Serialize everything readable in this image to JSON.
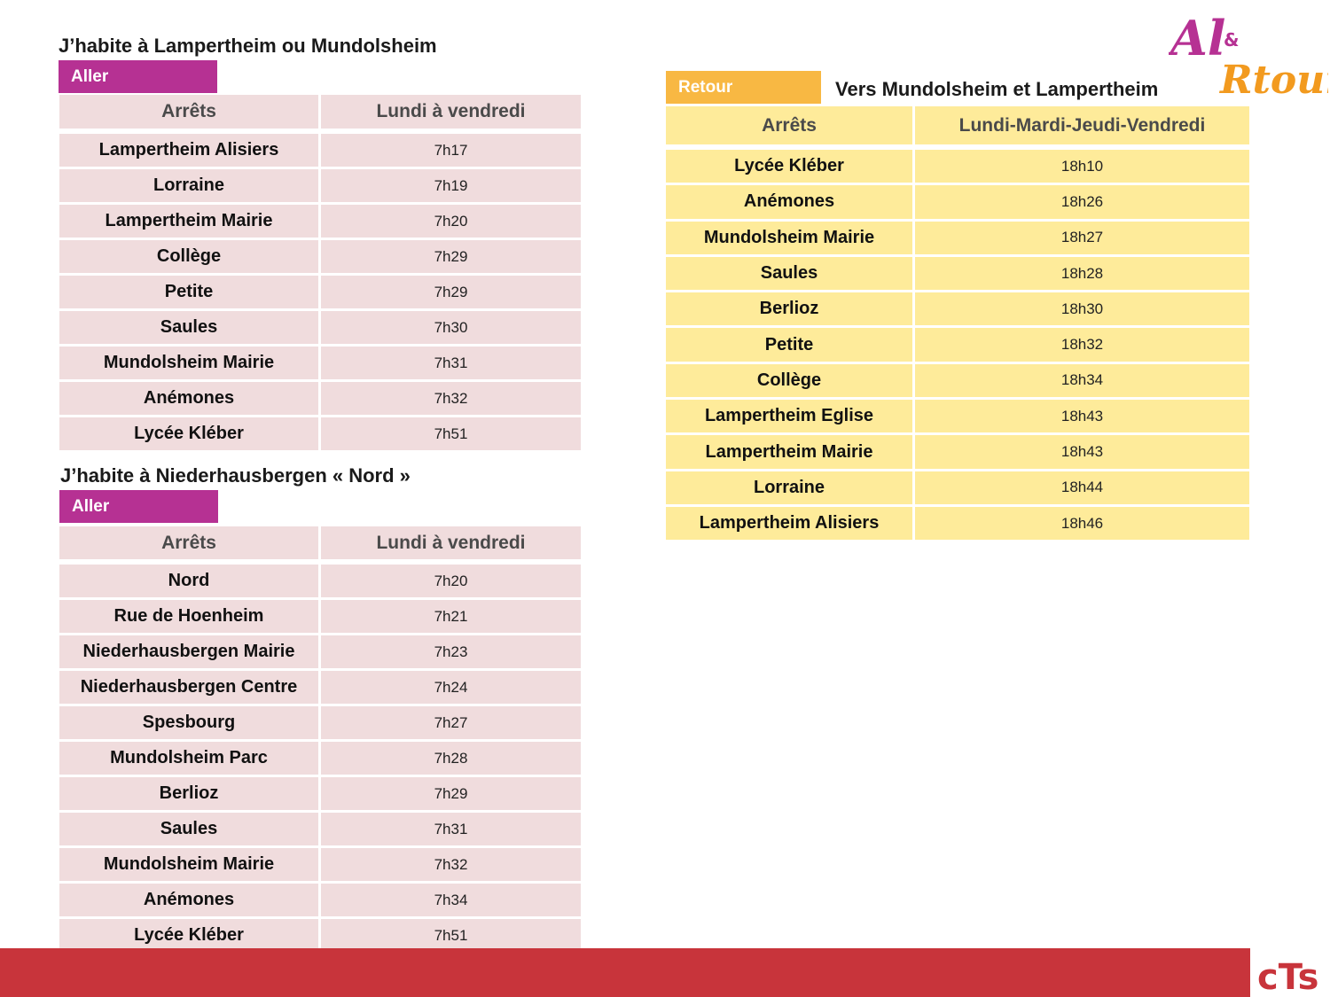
{
  "section1": {
    "heading": "J’habite à Lampertheim ou Mundolsheim",
    "tag": "Aller",
    "col_stop": "Arrêts",
    "col_time": "Lundi à vendredi",
    "rows": [
      {
        "stop": "Lampertheim Alisiers",
        "time": "7h17"
      },
      {
        "stop": "Lorraine",
        "time": "7h19"
      },
      {
        "stop": "Lampertheim Mairie",
        "time": "7h20"
      },
      {
        "stop": "Collège",
        "time": "7h29"
      },
      {
        "stop": "Petite",
        "time": "7h29"
      },
      {
        "stop": "Saules",
        "time": "7h30"
      },
      {
        "stop": "Mundolsheim Mairie",
        "time": "7h31"
      },
      {
        "stop": "Anémones",
        "time": "7h32"
      },
      {
        "stop": "Lycée Kléber",
        "time": "7h51"
      }
    ]
  },
  "section2": {
    "heading": "J’habite à Niederhausbergen « Nord »",
    "tag": "Aller",
    "col_stop": "Arrêts",
    "col_time": "Lundi à vendredi",
    "rows": [
      {
        "stop": "Nord",
        "time": "7h20"
      },
      {
        "stop": "Rue de Hoenheim",
        "time": "7h21"
      },
      {
        "stop": "Niederhausbergen Mairie",
        "time": "7h23"
      },
      {
        "stop": "Niederhausbergen Centre",
        "time": "7h24"
      },
      {
        "stop": "Spesbourg",
        "time": "7h27"
      },
      {
        "stop": "Mundolsheim Parc",
        "time": "7h28"
      },
      {
        "stop": "Berlioz",
        "time": "7h29"
      },
      {
        "stop": "Saules",
        "time": "7h31"
      },
      {
        "stop": "Mundolsheim Mairie",
        "time": "7h32"
      },
      {
        "stop": "Anémones",
        "time": "7h34"
      },
      {
        "stop": "Lycée Kléber",
        "time": "7h51"
      }
    ]
  },
  "section3": {
    "heading": "Vers Mundolsheim et Lampertheim",
    "tag": "Retour",
    "col_stop": "Arrêts",
    "col_time": "Lundi-Mardi-Jeudi-Vendredi",
    "rows": [
      {
        "stop": "Lycée Kléber",
        "time": "18h10"
      },
      {
        "stop": "Anémones",
        "time": "18h26"
      },
      {
        "stop": "Mundolsheim Mairie",
        "time": "18h27"
      },
      {
        "stop": "Saules",
        "time": "18h28"
      },
      {
        "stop": "Berlioz",
        "time": "18h30"
      },
      {
        "stop": "Petite",
        "time": "18h32"
      },
      {
        "stop": "Collège",
        "time": "18h34"
      },
      {
        "stop": "Lampertheim Eglise",
        "time": "18h43"
      },
      {
        "stop": "Lampertheim Mairie",
        "time": "18h43"
      },
      {
        "stop": "Lorraine",
        "time": "18h44"
      },
      {
        "stop": "Lampertheim Alisiers",
        "time": "18h46"
      }
    ]
  },
  "logo": {
    "part1": "Al",
    "amp": "&",
    "part2": "Rtour"
  },
  "footer_logo": "cTs",
  "colors": {
    "aller": "#b63193",
    "retour": "#f8b843",
    "pink_cell": "#f0dcdd",
    "yellow_cell": "#feeb9a",
    "footer": "#c8343b",
    "logo_orange": "#f29a1f"
  }
}
